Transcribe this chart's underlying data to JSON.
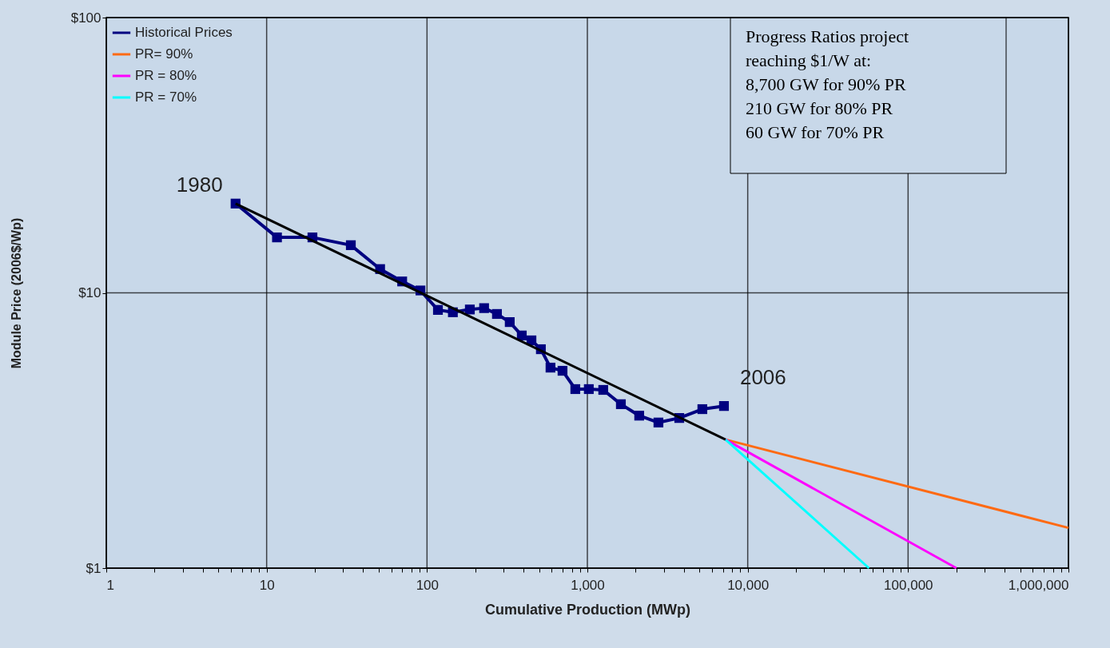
{
  "chart_data": {
    "type": "line",
    "xlabel": "Cumulative Production (MWp)",
    "ylabel": "Module Price (2006$/Wp)",
    "log": "xy",
    "grid": true,
    "legend": "top left",
    "xlim": [
      1,
      1000000
    ],
    "ylim": [
      1,
      100
    ],
    "xticks": [
      1,
      10,
      100,
      {
        "value": 1000,
        "label": "1,000"
      },
      {
        "value": 10000,
        "label": "10,000"
      },
      {
        "value": 100000,
        "label": "100,000"
      },
      {
        "value": 1000000,
        "label": "1,000,000"
      },
      {
        "value": 2,
        "label": null
      },
      {
        "value": 3,
        "label": null
      },
      {
        "value": 4,
        "label": null
      },
      {
        "value": 5,
        "label": null
      },
      {
        "value": 6,
        "label": null
      },
      {
        "value": 7,
        "label": null
      },
      {
        "value": 8,
        "label": null
      },
      {
        "value": 9,
        "label": null
      },
      {
        "value": 20,
        "label": null
      },
      {
        "value": 30,
        "label": null
      },
      {
        "value": 40,
        "label": null
      },
      {
        "value": 50,
        "label": null
      },
      {
        "value": 60,
        "label": null
      },
      {
        "value": 70,
        "label": null
      },
      {
        "value": 80,
        "label": null
      },
      {
        "value": 90,
        "label": null
      },
      {
        "value": 200,
        "label": null
      },
      {
        "value": 300,
        "label": null
      },
      {
        "value": 400,
        "label": null
      },
      {
        "value": 500,
        "label": null
      },
      {
        "value": 600,
        "label": null
      },
      {
        "value": 700,
        "label": null
      },
      {
        "value": 800,
        "label": null
      },
      {
        "value": 900,
        "label": null
      },
      {
        "value": 2000,
        "label": null
      },
      {
        "value": 3000,
        "label": null
      },
      {
        "value": 4000,
        "label": null
      },
      {
        "value": 5000,
        "label": null
      },
      {
        "value": 6000,
        "label": null
      },
      {
        "value": 7000,
        "label": null
      },
      {
        "value": 8000,
        "label": null
      },
      {
        "value": 9000,
        "label": null
      },
      {
        "value": 20000,
        "label": null
      },
      {
        "value": 30000,
        "label": null
      },
      {
        "value": 40000,
        "label": null
      },
      {
        "value": 50000,
        "label": null
      },
      {
        "value": 60000,
        "label": null
      },
      {
        "value": 70000,
        "label": null
      },
      {
        "value": 80000,
        "label": null
      },
      {
        "value": 90000,
        "label": null
      },
      {
        "value": 200000,
        "label": null
      },
      {
        "value": 300000,
        "label": null
      },
      {
        "value": 400000,
        "label": null
      },
      {
        "value": 500000,
        "label": null
      },
      {
        "value": 600000,
        "label": null
      },
      {
        "value": 700000,
        "label": null
      },
      {
        "value": 800000,
        "label": null
      },
      {
        "value": 900000,
        "label": null
      }
    ],
    "yticks": [
      {
        "value": 1,
        "label": "$1"
      },
      {
        "value": 10,
        "label": "$10"
      },
      {
        "value": 100,
        "label": "$100"
      }
    ],
    "series": [
      {
        "name": "Historical Prices",
        "color": "#000080",
        "marker": "square",
        "x": [
          6.4,
          11.6,
          19.3,
          33.5,
          51,
          70,
          91,
          117,
          145,
          185,
          227,
          273,
          328,
          390,
          448,
          513,
          589,
          700,
          841,
          1021,
          1256,
          1618,
          2105,
          2774,
          3742,
          5213,
          7110
        ],
        "values": [
          21.1,
          15.9,
          15.9,
          14.9,
          12.2,
          11.0,
          10.2,
          8.67,
          8.5,
          8.7,
          8.8,
          8.38,
          7.83,
          7.0,
          6.72,
          6.24,
          5.35,
          5.21,
          4.47,
          4.47,
          4.44,
          3.94,
          3.58,
          3.38,
          3.51,
          3.78,
          3.88
        ]
      },
      {
        "name": "PR= 90%",
        "color": "#ff6a13",
        "x": [
          7270,
          1000000
        ],
        "values": [
          2.93,
          1.4
        ]
      },
      {
        "name": "PR = 80%",
        "color": "#ff00ff",
        "x": [
          7270,
          200000
        ],
        "values": [
          2.93,
          1.0
        ]
      },
      {
        "name": "PR = 70%",
        "color": "#00ffff",
        "x": [
          7270,
          57000
        ],
        "values": [
          2.93,
          1.0
        ]
      },
      {
        "color": "#000000",
        "x": [
          6.4,
          7270
        ],
        "values": [
          21.1,
          2.93
        ]
      }
    ],
    "annotations": [
      {
        "text": "1980",
        "x": 6.4,
        "y": 21.1
      },
      {
        "text": "2006",
        "x": 7110,
        "y": 3.88
      },
      "Progress Ratios project\nreaching $1/W at:\n8,700 GW for 90% PR\n210 GW for 80% PR\n60 GW for 70% PR"
    ]
  }
}
